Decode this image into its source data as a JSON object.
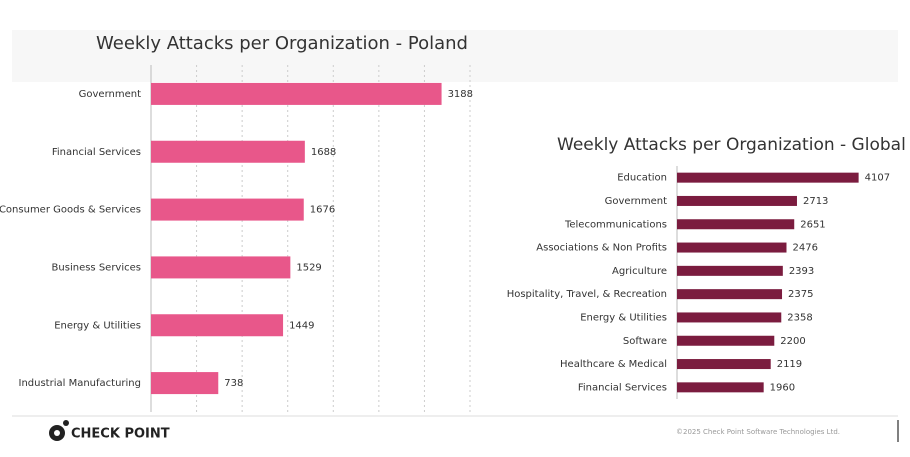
{
  "chart_data": [
    {
      "type": "bar",
      "orientation": "horizontal",
      "title": "Weekly Attacks per Organization - Poland",
      "categories": [
        "Government",
        "Financial Services",
        "Consumer Goods & Services",
        "Business Services",
        "Energy & Utilities",
        "Industrial Manufacturing"
      ],
      "values": [
        3188,
        1688,
        1676,
        1529,
        1449,
        738
      ],
      "color": "#e8578a",
      "xlim": [
        0,
        3500
      ],
      "xticks": [
        0,
        500,
        1000,
        1500,
        2000,
        2500,
        3000,
        3500
      ],
      "grid": true
    },
    {
      "type": "bar",
      "orientation": "horizontal",
      "title": "Weekly Attacks per Organization - Global",
      "categories": [
        "Education",
        "Government",
        "Telecommunications",
        "Associations & Non Profits",
        "Agriculture",
        "Hospitality, Travel, & Recreation",
        "Energy & Utilities",
        "Software",
        "Healthcare & Medical",
        "Financial Services"
      ],
      "values": [
        4107,
        2713,
        2651,
        2476,
        2393,
        2375,
        2358,
        2200,
        2119,
        1960
      ],
      "color": "#7b1c3f",
      "xlim": [
        0,
        4500
      ],
      "grid": false
    }
  ],
  "footer": {
    "brand": "CHECK POINT",
    "copyright": "©2025 Check Point Software Technologies Ltd."
  }
}
